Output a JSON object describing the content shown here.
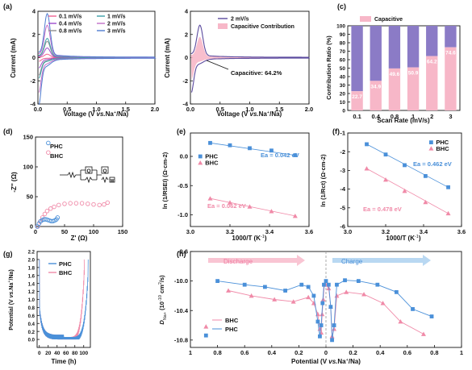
{
  "figure": {
    "colors": {
      "axis": "#111111",
      "pink": "#f08aa8",
      "blue": "#4a90d9",
      "purple": "#8b7bc6",
      "pink_fill": "#f7b7c8"
    },
    "panels": {
      "a": {
        "tag": "(a)",
        "series_labels": [
          "0.1 mV/s",
          "0.4 mV/s",
          "0.8 mV/s",
          "1 mV/s",
          "2 mV/s",
          "3 mV/s"
        ],
        "series_colors": [
          "#f06292",
          "#9c4dcc",
          "#8e8e8e",
          "#3aa0a8",
          "#c26ec9",
          "#4e7ccf"
        ],
        "scales": [
          0.1,
          0.4,
          0.8,
          1.0,
          2.0,
          3.0
        ]
      },
      "b": {
        "series_label": "2 mV/s",
        "fill_label": "Capacitive Contribution",
        "annotation": "Capacitive: 64.2%"
      }
    }
  },
  "chart_data": [
    {
      "id": "a",
      "type": "line",
      "title": "",
      "xlabel": "Voltage (V vs.Na+/Na)",
      "ylabel": "Current (mA)",
      "xlim": [
        0,
        2.0
      ],
      "ylim": [
        -4,
        4
      ],
      "xticks": [
        "0.0",
        "0.5",
        "1.0",
        "1.5",
        "2.0"
      ],
      "yticks": [
        "-4",
        "-2",
        "0",
        "2",
        "4"
      ],
      "series": [
        {
          "name": "0.1 mV/s"
        },
        {
          "name": "1 mV/s"
        },
        {
          "name": "0.4 mV/s"
        },
        {
          "name": "2 mV/s"
        },
        {
          "name": "0.8 mV/s"
        },
        {
          "name": "3 mV/s"
        }
      ],
      "note": "cyclic voltammetry curves, anodic peak near 0.15 V"
    },
    {
      "id": "b",
      "type": "area",
      "xlabel": "Voltage (V vs.Na+/Na)",
      "ylabel": "Current (mA)",
      "xlim": [
        0,
        2.0
      ],
      "ylim": [
        -4,
        4
      ],
      "xticks": [
        "0.0",
        "0.5",
        "1.0",
        "1.5",
        "2.0"
      ],
      "yticks": [
        "-4",
        "-2",
        "0",
        "2",
        "4"
      ],
      "series": [
        {
          "name": "2 mV/s"
        },
        {
          "name": "Capacitive Contribution"
        }
      ],
      "annotation": "Capacitive: 64.2%"
    },
    {
      "id": "c",
      "type": "bar",
      "xlabel": "Scan Rate (mV/s)",
      "ylabel": "Contribution Ratio (%)",
      "categories": [
        "0.1",
        "0.4",
        "0.8",
        "1",
        "2",
        "3"
      ],
      "ylim": [
        0,
        100
      ],
      "yticks": [
        "0",
        "10",
        "20",
        "30",
        "40",
        "50",
        "60",
        "70",
        "80",
        "90",
        "100"
      ],
      "series": [
        {
          "name": "Capacitive",
          "values": [
            22.7,
            34.9,
            49.6,
            50.9,
            64.2,
            74.6
          ]
        }
      ],
      "labels": [
        "22.7",
        "34.9",
        "49.6",
        "50.9",
        "64.2",
        "74.6"
      ],
      "legend": "Capacitive"
    },
    {
      "id": "d",
      "type": "scatter",
      "xlabel": "Z' (Ω)",
      "ylabel": "-Z'' (Ω)",
      "xlim": [
        0,
        150
      ],
      "ylim": [
        0,
        150
      ],
      "xticks": [
        "0",
        "50",
        "100",
        "150"
      ],
      "yticks": [
        "0",
        "50",
        "100",
        "150"
      ],
      "series": [
        {
          "name": "PHC",
          "x": [
            3,
            6,
            9,
            12,
            15,
            18,
            21,
            24,
            27,
            30,
            33,
            36,
            38
          ],
          "y": [
            0,
            5,
            9,
            11,
            12,
            12,
            11,
            10,
            9,
            9,
            10,
            12,
            15
          ]
        },
        {
          "name": "BHC",
          "x": [
            4,
            8,
            12,
            16,
            20,
            26,
            32,
            40,
            50,
            60,
            70,
            80,
            90,
            100,
            110,
            118,
            124
          ],
          "y": [
            0,
            8,
            15,
            21,
            26,
            30,
            33,
            36,
            38,
            39,
            39,
            39,
            38,
            37,
            36,
            37,
            40
          ]
        }
      ]
    },
    {
      "id": "e",
      "type": "scatter",
      "xlabel": "1000/T (K-1)",
      "ylabel": "ln (1/RSEI) (Ω·cm-2)",
      "xlim": [
        3.0,
        3.6
      ],
      "ylim": [
        -1.2,
        0.4
      ],
      "xticks": [
        "3.0",
        "3.2",
        "3.4",
        "3.6"
      ],
      "yticks": [
        "-1.0",
        "-0.5",
        "0.0"
      ],
      "series": [
        {
          "name": "PHC",
          "x": [
            3.1,
            3.2,
            3.3,
            3.41,
            3.53
          ],
          "y": [
            0.23,
            0.19,
            0.14,
            0.1,
            0.02
          ],
          "fit_label": "Ea = 0.042 eV"
        },
        {
          "name": "BHC",
          "x": [
            3.1,
            3.2,
            3.3,
            3.41,
            3.53
          ],
          "y": [
            -0.72,
            -0.79,
            -0.86,
            -0.94,
            -1.02
          ],
          "fit_label": "Ea = 0.062 eV"
        }
      ]
    },
    {
      "id": "f",
      "type": "scatter",
      "xlabel": "1000/T (K-1)",
      "ylabel": "ln (1/Rct) (Ω·cm-2)",
      "xlim": [
        3.0,
        3.6
      ],
      "ylim": [
        -6,
        -1
      ],
      "xticks": [
        "3.0",
        "3.2",
        "3.4",
        "3.6"
      ],
      "yticks": [
        "-6",
        "-5",
        "-4",
        "-3",
        "-2",
        "-1"
      ],
      "series": [
        {
          "name": "PHC",
          "x": [
            3.1,
            3.2,
            3.3,
            3.41,
            3.53
          ],
          "y": [
            -1.6,
            -2.15,
            -2.72,
            -3.3,
            -3.9
          ],
          "fit_label": "Ea = 0.462 eV"
        },
        {
          "name": "BHC",
          "x": [
            3.1,
            3.2,
            3.3,
            3.41,
            3.53
          ],
          "y": [
            -2.9,
            -3.5,
            -4.1,
            -4.7,
            -5.3
          ],
          "fit_label": "Ea = 0.478 eV"
        }
      ]
    },
    {
      "id": "g",
      "type": "line",
      "xlabel": "Time (h)",
      "ylabel": "Potential (V vs.Na+/Na)",
      "xlim": [
        -5,
        115
      ],
      "ylim": [
        -0.2,
        2.2
      ],
      "xticks": [
        "0",
        "20",
        "40",
        "60",
        "80",
        "100"
      ],
      "yticks": [
        "0.0",
        "0.2",
        "0.4",
        "0.6",
        "0.8",
        "1.0",
        "1.2",
        "1.4",
        "1.6",
        "1.8",
        "2.0",
        "2.2"
      ],
      "series": [
        {
          "name": "PHC"
        },
        {
          "name": "BHC"
        }
      ]
    },
    {
      "id": "h",
      "type": "line",
      "xlabel": "Potential (V vs.Na+/Na)",
      "ylabel": "DNa+ (10-10 cm2/s)",
      "xticks": [
        "1",
        "0.8",
        "0.6",
        "0.4",
        "0.2",
        "0",
        "0.2",
        "0.4",
        "0.6",
        "0.8",
        "1"
      ],
      "yticks": [
        "-9.6",
        "-10.0",
        "-10.4",
        "-10.8"
      ],
      "ylim": [
        -10.9,
        -9.6
      ],
      "annotations": [
        "Discharge",
        "Charge"
      ],
      "series": [
        {
          "name": "BHC",
          "discharge_x": [
            0.72,
            0.55,
            0.38,
            0.24,
            0.13,
            0.09,
            0.06,
            0.045,
            0.035,
            0.028,
            0.02,
            0.012
          ],
          "discharge_y": [
            -10.13,
            -10.2,
            -10.25,
            -10.28,
            -10.22,
            -10.3,
            -10.45,
            -10.65,
            -10.7,
            -10.45,
            -10.25,
            -10.05
          ],
          "charge_x": [
            0.0,
            0.02,
            0.035,
            0.045,
            0.06,
            0.08,
            0.15,
            0.28,
            0.42,
            0.55,
            0.72
          ],
          "charge_y": [
            -10.05,
            -10.1,
            -10.35,
            -10.75,
            -10.65,
            -10.2,
            -10.15,
            -10.18,
            -10.3,
            -10.55,
            -10.72
          ]
        },
        {
          "name": "PHC",
          "discharge_x": [
            0.8,
            0.6,
            0.45,
            0.3,
            0.18,
            0.13,
            0.09,
            0.06,
            0.045,
            0.035,
            0.025,
            0.015
          ],
          "discharge_y": [
            -10.0,
            -10.05,
            -10.08,
            -10.13,
            -10.05,
            -10.08,
            -10.2,
            -10.55,
            -10.75,
            -10.6,
            -10.3,
            -10.05
          ],
          "charge_x": [
            0.0,
            0.02,
            0.035,
            0.045,
            0.06,
            0.08,
            0.14,
            0.24,
            0.38,
            0.52,
            0.64,
            0.78
          ],
          "charge_y": [
            -10.0,
            -10.05,
            -10.35,
            -10.8,
            -10.6,
            -10.05,
            -9.99,
            -10.0,
            -10.05,
            -10.15,
            -10.38,
            -10.48
          ]
        }
      ]
    }
  ]
}
